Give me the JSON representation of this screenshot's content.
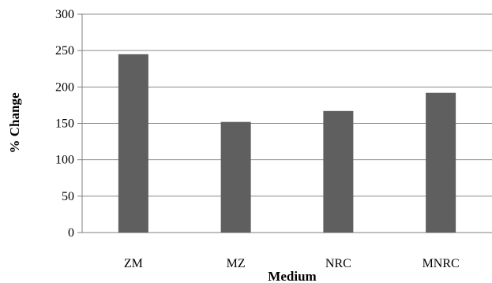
{
  "chart_data": {
    "type": "bar",
    "categories": [
      "ZM",
      "MZ",
      "NRC",
      "MNRC"
    ],
    "values": [
      245,
      152,
      167,
      192
    ],
    "xlabel": "Medium",
    "ylabel": "% Change",
    "ylim": [
      0,
      300
    ],
    "yticks": [
      0,
      50,
      100,
      150,
      200,
      250,
      300
    ],
    "grid": true,
    "legend": "none",
    "colors": {
      "bar": "#5f5f5f",
      "grid": "#8c8c8c",
      "axis": "#7f7f7f"
    }
  }
}
